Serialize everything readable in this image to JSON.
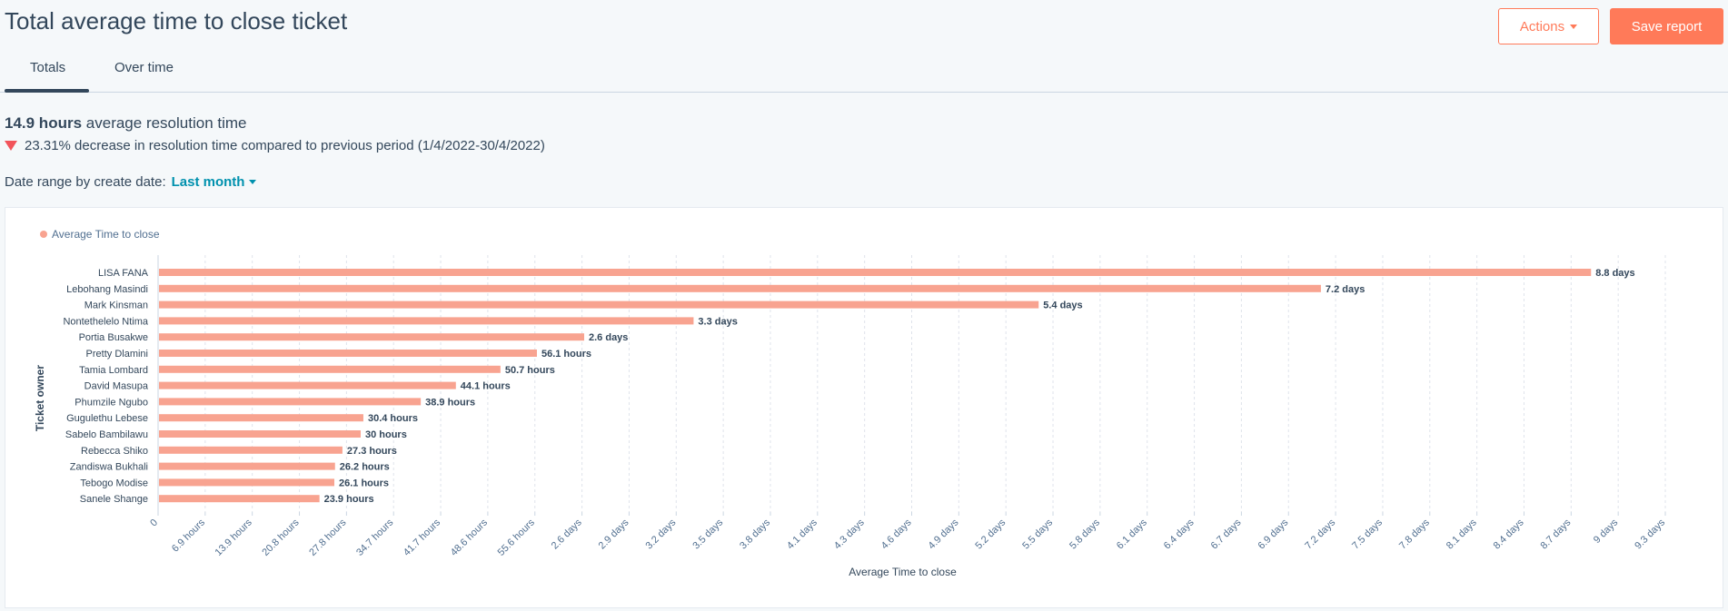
{
  "header": {
    "title": "Total average time to close ticket",
    "actions_label": "Actions",
    "save_label": "Save report"
  },
  "tabs": [
    {
      "label": "Totals",
      "active": true
    },
    {
      "label": "Over time",
      "active": false
    }
  ],
  "summary": {
    "value": "14.9 hours",
    "text": "average resolution time",
    "change_text": "23.31% decrease in resolution time compared to previous period (1/4/2022-30/4/2022)"
  },
  "date_range": {
    "label": "Date range by create date:",
    "value": "Last month"
  },
  "colors": {
    "accent": "#ff7a59",
    "bar": "#f8a390",
    "link": "#0091ae",
    "decrease": "#f2545b"
  },
  "chart_data": {
    "type": "bar",
    "orientation": "horizontal",
    "legend": "top-left",
    "series": [
      {
        "name": "Average Time to close"
      }
    ],
    "xlabel": "Average Time to close",
    "ylabel": "Ticket owner",
    "grid": true,
    "xlim_hours": [
      0,
      223.2
    ],
    "x_ticks": [
      "0",
      "6.9 hours",
      "13.9 hours",
      "20.8 hours",
      "27.8 hours",
      "34.7 hours",
      "41.7 hours",
      "48.6 hours",
      "55.6 hours",
      "2.6 days",
      "2.9 days",
      "3.2 days",
      "3.5 days",
      "3.8 days",
      "4.1 days",
      "4.3 days",
      "4.6 days",
      "4.9 days",
      "5.2 days",
      "5.5 days",
      "5.8 days",
      "6.1 days",
      "6.4 days",
      "6.7 days",
      "6.9 days",
      "7.2 days",
      "7.5 days",
      "7.8 days",
      "8.1 days",
      "8.4 days",
      "8.7 days",
      "9 days",
      "9.3 days"
    ],
    "categories": [
      "LISA FANA",
      "Lebohang Masindi",
      "Mark Kinsman",
      "Nontethelelo Ntima",
      "Portia Busakwe",
      "Pretty Dlamini",
      "Tamia Lombard",
      "David Masupa",
      "Phumzile Ngubo",
      "Gugulethu Lebese",
      "Sabelo Bambilawu",
      "Rebecca Shiko",
      "Zandiswa Bukhali",
      "Tebogo Modise",
      "Sanele Shange"
    ],
    "values_hours": [
      212.2,
      172.2,
      130.4,
      79.3,
      63.1,
      56.1,
      50.7,
      44.1,
      38.9,
      30.4,
      30,
      27.3,
      26.2,
      26.1,
      23.9
    ],
    "data_labels": [
      "8.8 days",
      "7.2 days",
      "5.4 days",
      "3.3 days",
      "2.6 days",
      "56.1 hours",
      "50.7 hours",
      "44.1 hours",
      "38.9 hours",
      "30.4 hours",
      "30 hours",
      "27.3 hours",
      "26.2 hours",
      "26.1 hours",
      "23.9 hours"
    ]
  }
}
